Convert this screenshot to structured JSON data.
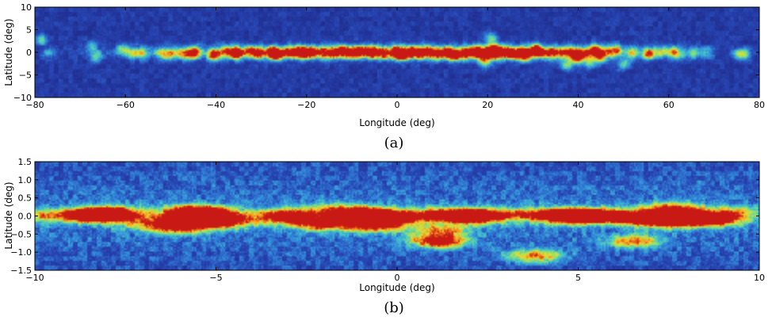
{
  "colors": {
    "background_map": "#1f2a8a",
    "noise": "#2f55c8",
    "emission_low": "#3fa6e0",
    "emission_mid": "#8ee07a",
    "emission_high": "#f0d030",
    "emission_peak": "#d63020",
    "axis": "#000000"
  },
  "panels": [
    {
      "caption": "(a)",
      "xlabel": "Longitude (deg)",
      "ylabel": "Latitude (deg)",
      "xlim": [
        -80,
        80
      ],
      "ylim": [
        -10,
        10
      ],
      "xticks": [
        -80,
        -60,
        -40,
        -20,
        0,
        20,
        40,
        60,
        80
      ],
      "yticks": [
        10,
        5,
        0,
        -5,
        -10
      ],
      "xtick_labels": [
        "−80",
        "−60",
        "−40",
        "−20",
        "0",
        "20",
        "40",
        "60",
        "80"
      ],
      "ytick_labels": [
        "10",
        "5",
        "0",
        "−5",
        "−10"
      ]
    },
    {
      "caption": "(b)",
      "xlabel": "Longitude (deg)",
      "ylabel": "Latitude (deg)",
      "xlim": [
        -10,
        10
      ],
      "ylim": [
        -1.5,
        1.5
      ],
      "xticks": [
        -10,
        -5,
        0,
        5,
        10
      ],
      "yticks": [
        1.5,
        1.0,
        0.5,
        0.0,
        -0.5,
        -1.0,
        -1.5
      ],
      "xtick_labels": [
        "−10",
        "−5",
        "0",
        "5",
        "10"
      ],
      "ytick_labels": [
        "1.5",
        "1.0",
        "0.5",
        "0.0",
        "−0.5",
        "−1.0",
        "−1.5"
      ]
    }
  ],
  "chart_data": [
    {
      "type": "heatmap",
      "xlim": [
        -80,
        80
      ],
      "ylim": [
        -10,
        10
      ],
      "sources": [
        {
          "x": -78.5,
          "y": 2.8,
          "v": 0.45
        },
        {
          "x": -77,
          "y": -0.2,
          "v": 0.3
        },
        {
          "x": -67.5,
          "y": 1.3,
          "v": 0.35
        },
        {
          "x": -66.5,
          "y": -1.0,
          "v": 0.4
        },
        {
          "x": -60.5,
          "y": 0.6,
          "v": 0.5
        },
        {
          "x": -58,
          "y": -0.2,
          "v": 0.45
        },
        {
          "x": -56,
          "y": -0.3,
          "v": 0.45
        },
        {
          "x": -52,
          "y": -0.3,
          "v": 0.45
        },
        {
          "x": -50,
          "y": -0.4,
          "v": 0.5
        },
        {
          "x": -47.5,
          "y": -0.2,
          "v": 0.55
        },
        {
          "x": -45.5,
          "y": -0.4,
          "v": 0.6
        },
        {
          "x": -44.5,
          "y": 0.2,
          "v": 0.55
        },
        {
          "x": -40.5,
          "y": -0.6,
          "v": 0.85
        },
        {
          "x": -38,
          "y": 0.2,
          "v": 0.5
        },
        {
          "x": -36,
          "y": 0.1,
          "v": 0.6
        },
        {
          "x": -35.2,
          "y": -0.3,
          "v": 0.75
        },
        {
          "x": -32.5,
          "y": 0.2,
          "v": 0.6
        },
        {
          "x": -30.5,
          "y": -0.2,
          "v": 0.8
        },
        {
          "x": -27.5,
          "y": 0.0,
          "v": 0.95
        },
        {
          "x": -26.5,
          "y": -0.5,
          "v": 0.85
        },
        {
          "x": -24,
          "y": -0.1,
          "v": 0.6
        },
        {
          "x": -22,
          "y": 0.1,
          "v": 0.7
        },
        {
          "x": -20.5,
          "y": -0.2,
          "v": 0.8
        },
        {
          "x": -18.5,
          "y": 0.1,
          "v": 0.75
        },
        {
          "x": -16,
          "y": -0.3,
          "v": 0.55
        },
        {
          "x": -14,
          "y": 0.0,
          "v": 0.6
        },
        {
          "x": -12,
          "y": 0.4,
          "v": 0.7
        },
        {
          "x": -10,
          "y": -0.2,
          "v": 0.75
        },
        {
          "x": -8,
          "y": 0.2,
          "v": 0.7
        },
        {
          "x": -5.5,
          "y": 0.1,
          "v": 0.85
        },
        {
          "x": -3,
          "y": -0.3,
          "v": 0.65
        },
        {
          "x": 0,
          "y": 0.0,
          "v": 0.95
        },
        {
          "x": 1.2,
          "y": -0.6,
          "v": 0.8
        },
        {
          "x": 3,
          "y": 0.1,
          "v": 0.7
        },
        {
          "x": 5,
          "y": -0.2,
          "v": 0.75
        },
        {
          "x": 7,
          "y": 0.1,
          "v": 0.7
        },
        {
          "x": 9,
          "y": -0.4,
          "v": 0.6
        },
        {
          "x": 11,
          "y": -0.1,
          "v": 0.8
        },
        {
          "x": 12.8,
          "y": -0.7,
          "v": 0.85
        },
        {
          "x": 15.2,
          "y": -0.2,
          "v": 0.9
        },
        {
          "x": 17.5,
          "y": 0.5,
          "v": 0.6
        },
        {
          "x": 18.5,
          "y": -0.4,
          "v": 0.75
        },
        {
          "x": 19.5,
          "y": -2.2,
          "v": 0.5
        },
        {
          "x": 20.5,
          "y": 0.0,
          "v": 0.75
        },
        {
          "x": 20.8,
          "y": 3.2,
          "v": 0.4
        },
        {
          "x": 21.5,
          "y": 1.0,
          "v": 0.55
        },
        {
          "x": 22,
          "y": -0.5,
          "v": 0.6
        },
        {
          "x": 24,
          "y": 0.2,
          "v": 0.8
        },
        {
          "x": 25.5,
          "y": -0.5,
          "v": 0.7
        },
        {
          "x": 27.5,
          "y": -0.1,
          "v": 0.75
        },
        {
          "x": 28.5,
          "y": -0.7,
          "v": 0.85
        },
        {
          "x": 30.5,
          "y": 0.8,
          "v": 0.7
        },
        {
          "x": 31.5,
          "y": 0.0,
          "v": 0.6
        },
        {
          "x": 33.5,
          "y": -0.3,
          "v": 0.55
        },
        {
          "x": 35,
          "y": 0.1,
          "v": 0.5
        },
        {
          "x": 37,
          "y": -0.1,
          "v": 0.55
        },
        {
          "x": 37.5,
          "y": -2.8,
          "v": 0.5
        },
        {
          "x": 39,
          "y": 0.0,
          "v": 0.7
        },
        {
          "x": 39.8,
          "y": -1.3,
          "v": 0.75
        },
        {
          "x": 41.5,
          "y": -0.2,
          "v": 0.6
        },
        {
          "x": 42.5,
          "y": -2.3,
          "v": 0.45
        },
        {
          "x": 43.5,
          "y": 0.7,
          "v": 0.55
        },
        {
          "x": 44.2,
          "y": -0.2,
          "v": 0.6
        },
        {
          "x": 45,
          "y": -1.3,
          "v": 0.5
        },
        {
          "x": 46.5,
          "y": 0.2,
          "v": 0.55
        },
        {
          "x": 48.5,
          "y": 0.4,
          "v": 0.6
        },
        {
          "x": 50,
          "y": -2.6,
          "v": 0.45
        },
        {
          "x": 52,
          "y": -0.2,
          "v": 0.5
        },
        {
          "x": 55.5,
          "y": -0.3,
          "v": 0.8
        },
        {
          "x": 58,
          "y": 0.1,
          "v": 0.4
        },
        {
          "x": 60.5,
          "y": 0.2,
          "v": 0.5
        },
        {
          "x": 62,
          "y": -0.3,
          "v": 0.45
        },
        {
          "x": 65.5,
          "y": -0.1,
          "v": 0.45
        },
        {
          "x": 68.5,
          "y": 0.0,
          "v": 0.3
        },
        {
          "x": 75.5,
          "y": -0.4,
          "v": 0.45
        },
        {
          "x": 77,
          "y": -0.3,
          "v": 0.4
        }
      ]
    },
    {
      "type": "heatmap",
      "xlim": [
        -10,
        10
      ],
      "ylim": [
        -1.5,
        1.5
      ],
      "sources": [
        {
          "x": -9.85,
          "y": 0.0,
          "v": 0.5
        },
        {
          "x": -8.5,
          "y": 0.02,
          "v": 0.95
        },
        {
          "x": -8.1,
          "y": 0.05,
          "v": 0.65
        },
        {
          "x": -7.75,
          "y": 0.05,
          "v": 0.75
        },
        {
          "x": -7.0,
          "y": -0.2,
          "v": 0.35
        },
        {
          "x": -6.5,
          "y": -0.3,
          "v": 0.35
        },
        {
          "x": -6.0,
          "y": -0.1,
          "v": 0.45
        },
        {
          "x": -5.7,
          "y": 0.12,
          "v": 0.9
        },
        {
          "x": -5.8,
          "y": -0.35,
          "v": 0.45
        },
        {
          "x": -5.1,
          "y": 0.05,
          "v": 0.9
        },
        {
          "x": -5.2,
          "y": -0.15,
          "v": 0.85
        },
        {
          "x": -4.4,
          "y": -0.15,
          "v": 0.4
        },
        {
          "x": -3.25,
          "y": 0.0,
          "v": 0.5
        },
        {
          "x": -2.9,
          "y": 0.0,
          "v": 0.6
        },
        {
          "x": -2.1,
          "y": -0.22,
          "v": 0.85
        },
        {
          "x": -1.8,
          "y": 0.15,
          "v": 0.5
        },
        {
          "x": -0.95,
          "y": 0.08,
          "v": 0.95
        },
        {
          "x": -0.9,
          "y": -0.22,
          "v": 0.55
        },
        {
          "x": -0.4,
          "y": -0.3,
          "v": 0.45
        },
        {
          "x": 0.0,
          "y": -0.02,
          "v": 1.0
        },
        {
          "x": 1.15,
          "y": -0.7,
          "v": 0.95
        },
        {
          "x": 1.25,
          "y": -0.4,
          "v": 0.55
        },
        {
          "x": 1.15,
          "y": 0.05,
          "v": 0.55
        },
        {
          "x": 1.9,
          "y": 0.0,
          "v": 0.8
        },
        {
          "x": 2.3,
          "y": 0.0,
          "v": 0.85
        },
        {
          "x": 3.5,
          "y": 0.05,
          "v": 0.5
        },
        {
          "x": 3.8,
          "y": -1.1,
          "v": 0.7
        },
        {
          "x": 4.5,
          "y": 0.0,
          "v": 0.85
        },
        {
          "x": 5.0,
          "y": 0.02,
          "v": 0.85
        },
        {
          "x": 5.3,
          "y": 0.0,
          "v": 0.75
        },
        {
          "x": 6.2,
          "y": 0.0,
          "v": 0.75
        },
        {
          "x": 6.55,
          "y": -0.7,
          "v": 0.65
        },
        {
          "x": 6.9,
          "y": -0.1,
          "v": 0.8
        },
        {
          "x": 7.6,
          "y": 0.18,
          "v": 0.9
        },
        {
          "x": 7.7,
          "y": -0.15,
          "v": 0.75
        },
        {
          "x": 8.3,
          "y": -0.05,
          "v": 0.45
        },
        {
          "x": 8.8,
          "y": -0.1,
          "v": 0.8
        },
        {
          "x": 9.3,
          "y": 0.1,
          "v": 0.5
        }
      ]
    }
  ]
}
